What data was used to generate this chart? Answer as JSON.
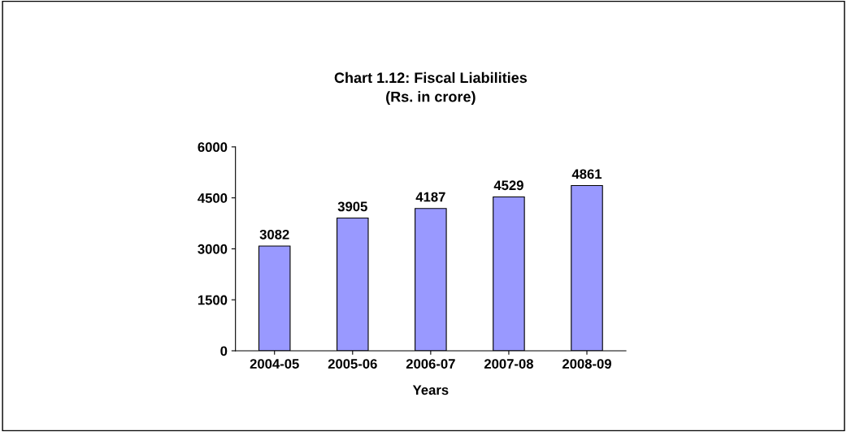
{
  "chart_data": {
    "type": "bar",
    "title": "Chart 1.12: Fiscal Liabilities\n(Rs. in crore)",
    "xlabel": "Years",
    "categories": [
      "2004-05",
      "2005-06",
      "2006-07",
      "2007-08",
      "2008-09"
    ],
    "values": [
      3082,
      3905,
      4187,
      4529,
      4861
    ],
    "color": "#9999ff",
    "ylim": [
      0,
      6000
    ],
    "yticks": [
      0,
      1500,
      3000,
      4500,
      6000
    ],
    "data_labels": true,
    "grid": false,
    "legend": false
  }
}
